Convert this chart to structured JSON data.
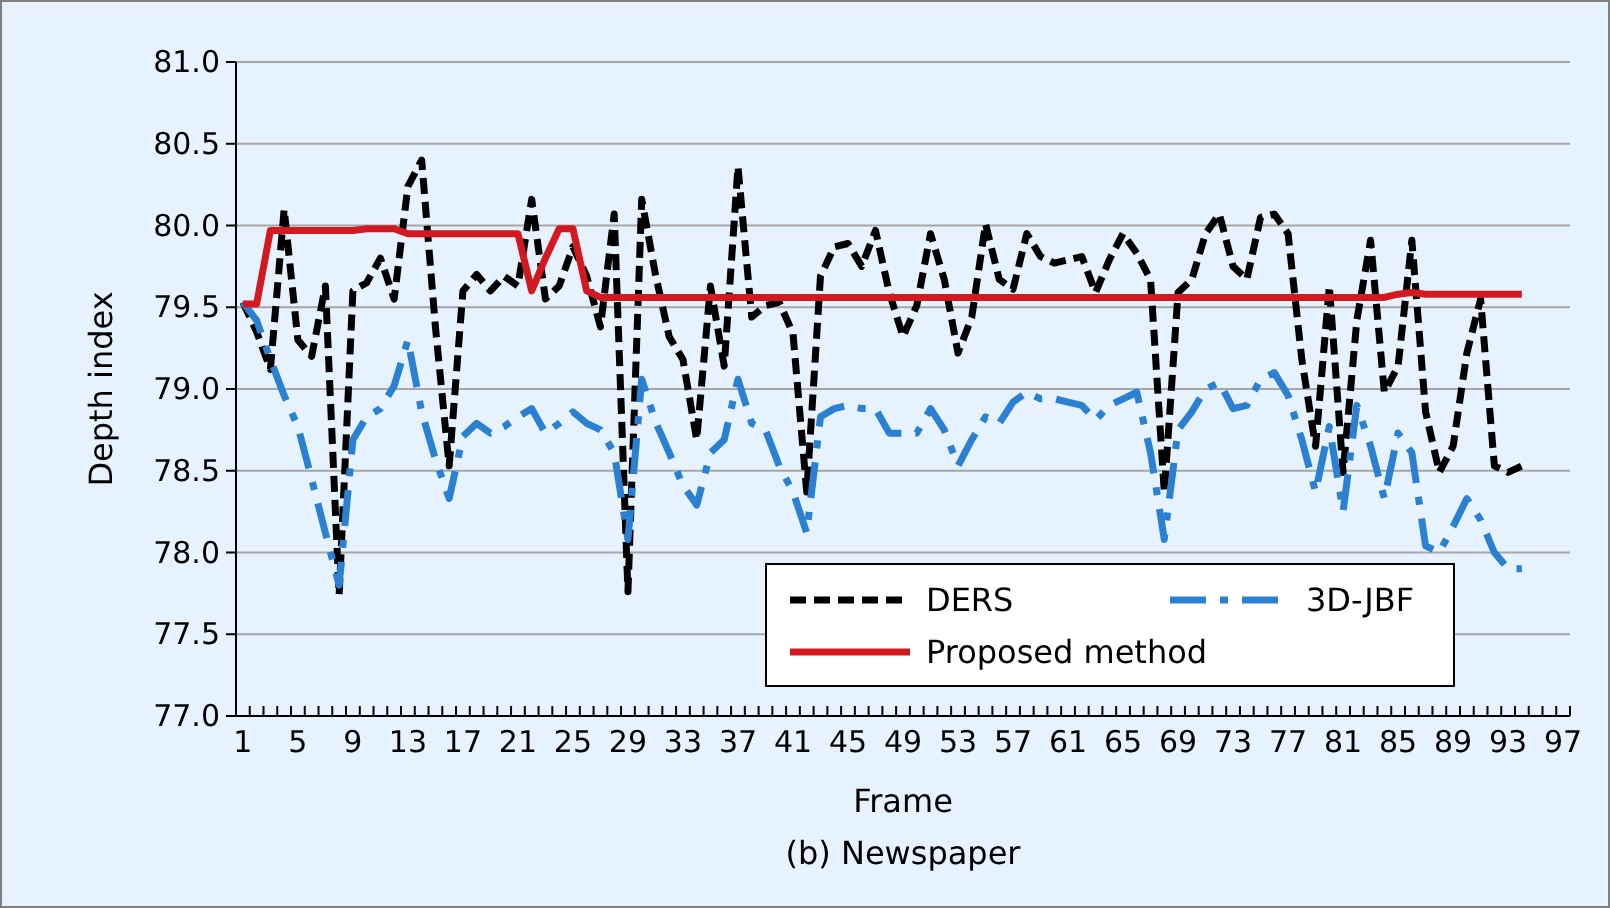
{
  "chart_data": {
    "type": "line",
    "title": "(b) Newspaper",
    "xlabel": "Frame",
    "ylabel": "Depth index",
    "categories": [
      "1",
      null,
      null,
      null,
      "5",
      null,
      null,
      null,
      "9",
      null,
      null,
      null,
      "13",
      null,
      null,
      null,
      "17",
      null,
      null,
      null,
      "21",
      null,
      null,
      null,
      "25",
      null,
      null,
      null,
      "29",
      null,
      null,
      null,
      "33",
      null,
      null,
      null,
      "37",
      null,
      null,
      null,
      "41",
      null,
      null,
      null,
      "45",
      null,
      null,
      null,
      "49",
      null,
      null,
      null,
      "53",
      null,
      null,
      null,
      "57",
      null,
      null,
      null,
      "61",
      null,
      null,
      null,
      "65",
      null,
      null,
      null,
      "69",
      null,
      null,
      null,
      "73",
      null,
      null,
      null,
      "77",
      null,
      null,
      null,
      "81",
      null,
      null,
      null,
      "85",
      null,
      null,
      null,
      "89",
      null,
      null,
      null,
      "93",
      null,
      null,
      null,
      "97"
    ],
    "ylim": [
      77,
      81
    ],
    "yticks": [
      {
        "value": 77,
        "label": "77.0"
      },
      77.5,
      {
        "value": 78,
        "label": "78.0"
      },
      78.5,
      {
        "value": 79,
        "label": "79.0"
      },
      79.5,
      {
        "value": 80,
        "label": "80.0"
      },
      80.5,
      {
        "value": 81,
        "label": "81.0"
      }
    ],
    "grid": "y",
    "legend": "bottom right",
    "marker": "none",
    "series": [
      {
        "name": "DERS",
        "color": "#000000",
        "line_style": "dashed",
        "values": [
          79.53,
          79.35,
          79.12,
          80.1,
          79.3,
          79.2,
          79.63,
          77.74,
          79.6,
          79.65,
          79.8,
          79.55,
          80.24,
          80.4,
          79.38,
          78.53,
          79.6,
          79.7,
          79.6,
          79.69,
          79.63,
          80.16,
          79.55,
          79.63,
          79.87,
          79.69,
          79.38,
          80.07,
          77.76,
          80.16,
          79.7,
          79.32,
          79.18,
          78.69,
          79.63,
          79.14,
          80.36,
          79.44,
          79.51,
          79.53,
          79.34,
          78.37,
          79.69,
          79.87,
          79.89,
          79.75,
          79.97,
          79.59,
          79.32,
          79.51,
          79.95,
          79.67,
          79.22,
          79.44,
          80.01,
          79.67,
          79.61,
          79.95,
          79.81,
          79.77,
          79.79,
          79.81,
          79.59,
          79.79,
          79.95,
          79.83,
          79.67,
          78.37,
          79.59,
          79.67,
          79.95,
          80.07,
          79.75,
          79.67,
          80.05,
          80.07,
          79.95,
          79.18,
          78.65,
          79.63,
          78.49,
          79.42,
          79.91,
          78.98,
          79.14,
          79.91,
          78.86,
          78.49,
          78.65,
          79.22,
          79.55,
          78.53,
          78.49,
          78.53,
          null,
          null,
          null
        ]
      },
      {
        "name": "3D-JBF",
        "color": "#2b80d2",
        "line_style": "dashdot",
        "values": [
          79.53,
          79.42,
          79.18,
          78.96,
          78.77,
          78.45,
          78.12,
          77.8,
          78.69,
          78.83,
          78.88,
          79.02,
          79.3,
          78.86,
          78.57,
          78.33,
          78.71,
          78.79,
          78.73,
          78.77,
          78.83,
          78.88,
          78.73,
          78.79,
          78.86,
          78.79,
          78.75,
          78.61,
          78.08,
          79.06,
          78.8,
          78.61,
          78.41,
          78.29,
          78.61,
          78.69,
          79.06,
          78.79,
          78.75,
          78.53,
          78.37,
          78.12,
          78.83,
          78.88,
          78.9,
          78.88,
          78.88,
          78.73,
          78.73,
          78.73,
          78.88,
          78.75,
          78.53,
          78.69,
          78.83,
          78.79,
          78.92,
          78.98,
          78.94,
          78.94,
          78.92,
          78.9,
          78.81,
          78.9,
          78.94,
          78.98,
          78.61,
          78.08,
          78.75,
          78.86,
          79.0,
          79.04,
          78.88,
          78.9,
          79.06,
          79.1,
          78.96,
          78.69,
          78.37,
          78.77,
          78.25,
          78.9,
          78.65,
          78.33,
          78.73,
          78.61,
          78.04,
          78.0,
          78.16,
          78.33,
          78.2,
          78.0,
          77.9,
          77.9,
          null,
          null,
          null
        ]
      },
      {
        "name": "Proposed method",
        "color": "#d41820",
        "line_style": "solid",
        "values": [
          79.52,
          79.52,
          79.97,
          79.97,
          79.97,
          79.97,
          79.97,
          79.97,
          79.97,
          79.98,
          79.98,
          79.98,
          79.95,
          79.95,
          79.95,
          79.95,
          79.95,
          79.95,
          79.95,
          79.95,
          79.95,
          79.6,
          79.8,
          79.98,
          79.98,
          79.6,
          79.56,
          79.56,
          79.56,
          79.56,
          79.56,
          79.56,
          79.56,
          79.56,
          79.56,
          79.56,
          79.56,
          79.56,
          79.56,
          79.56,
          79.56,
          79.56,
          79.56,
          79.56,
          79.56,
          79.56,
          79.56,
          79.56,
          79.56,
          79.56,
          79.56,
          79.56,
          79.56,
          79.56,
          79.56,
          79.56,
          79.56,
          79.56,
          79.56,
          79.56,
          79.56,
          79.56,
          79.56,
          79.56,
          79.56,
          79.56,
          79.56,
          79.56,
          79.56,
          79.56,
          79.56,
          79.56,
          79.56,
          79.56,
          79.56,
          79.56,
          79.56,
          79.56,
          79.56,
          79.56,
          79.56,
          79.56,
          79.56,
          79.56,
          79.58,
          79.59,
          79.58,
          79.58,
          79.58,
          79.58,
          79.58,
          79.58,
          79.58,
          79.58,
          null,
          null,
          null
        ]
      }
    ]
  }
}
